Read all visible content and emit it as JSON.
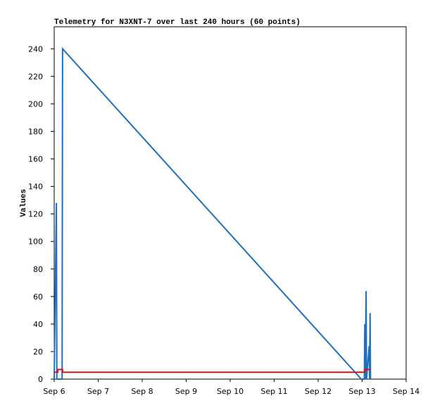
{
  "chart_data": {
    "type": "line",
    "title": "Telemetry for N3XNT-7 over last 240 hours (60 points)",
    "ylabel": "Values",
    "xlim": [
      0,
      8
    ],
    "xticks": [
      {
        "value": 0,
        "label": "Sep 6"
      },
      {
        "value": 1,
        "label": "Sep 7"
      },
      {
        "value": 2,
        "label": "Sep 8"
      },
      {
        "value": 3,
        "label": "Sep 9"
      },
      {
        "value": 4,
        "label": "Sep 10"
      },
      {
        "value": 5,
        "label": "Sep 11"
      },
      {
        "value": 6,
        "label": "Sep 12"
      },
      {
        "value": 7,
        "label": "Sep 13"
      },
      {
        "value": 8,
        "label": "Sep 14"
      }
    ],
    "ylim": [
      0,
      256
    ],
    "yticks": [
      0,
      20,
      40,
      60,
      80,
      100,
      120,
      140,
      160,
      180,
      200,
      220,
      240
    ],
    "series": [
      {
        "color": "#1f6fc0",
        "x": [
          0.0,
          0.05,
          0.06,
          0.18,
          0.19,
          6.98,
          7.05,
          7.06,
          7.07,
          7.09,
          7.1,
          7.16,
          7.17,
          7.18,
          7.19
        ],
        "values": [
          0,
          128,
          0,
          0,
          240,
          0,
          0,
          40,
          0,
          64,
          0,
          24,
          0,
          48,
          0
        ]
      },
      {
        "color": "#e01010",
        "x": [
          0.0,
          0.08,
          0.08,
          0.19,
          0.19,
          7.06,
          7.06,
          7.18
        ],
        "values": [
          5,
          5,
          7,
          7,
          5,
          5,
          7,
          7
        ]
      }
    ]
  }
}
